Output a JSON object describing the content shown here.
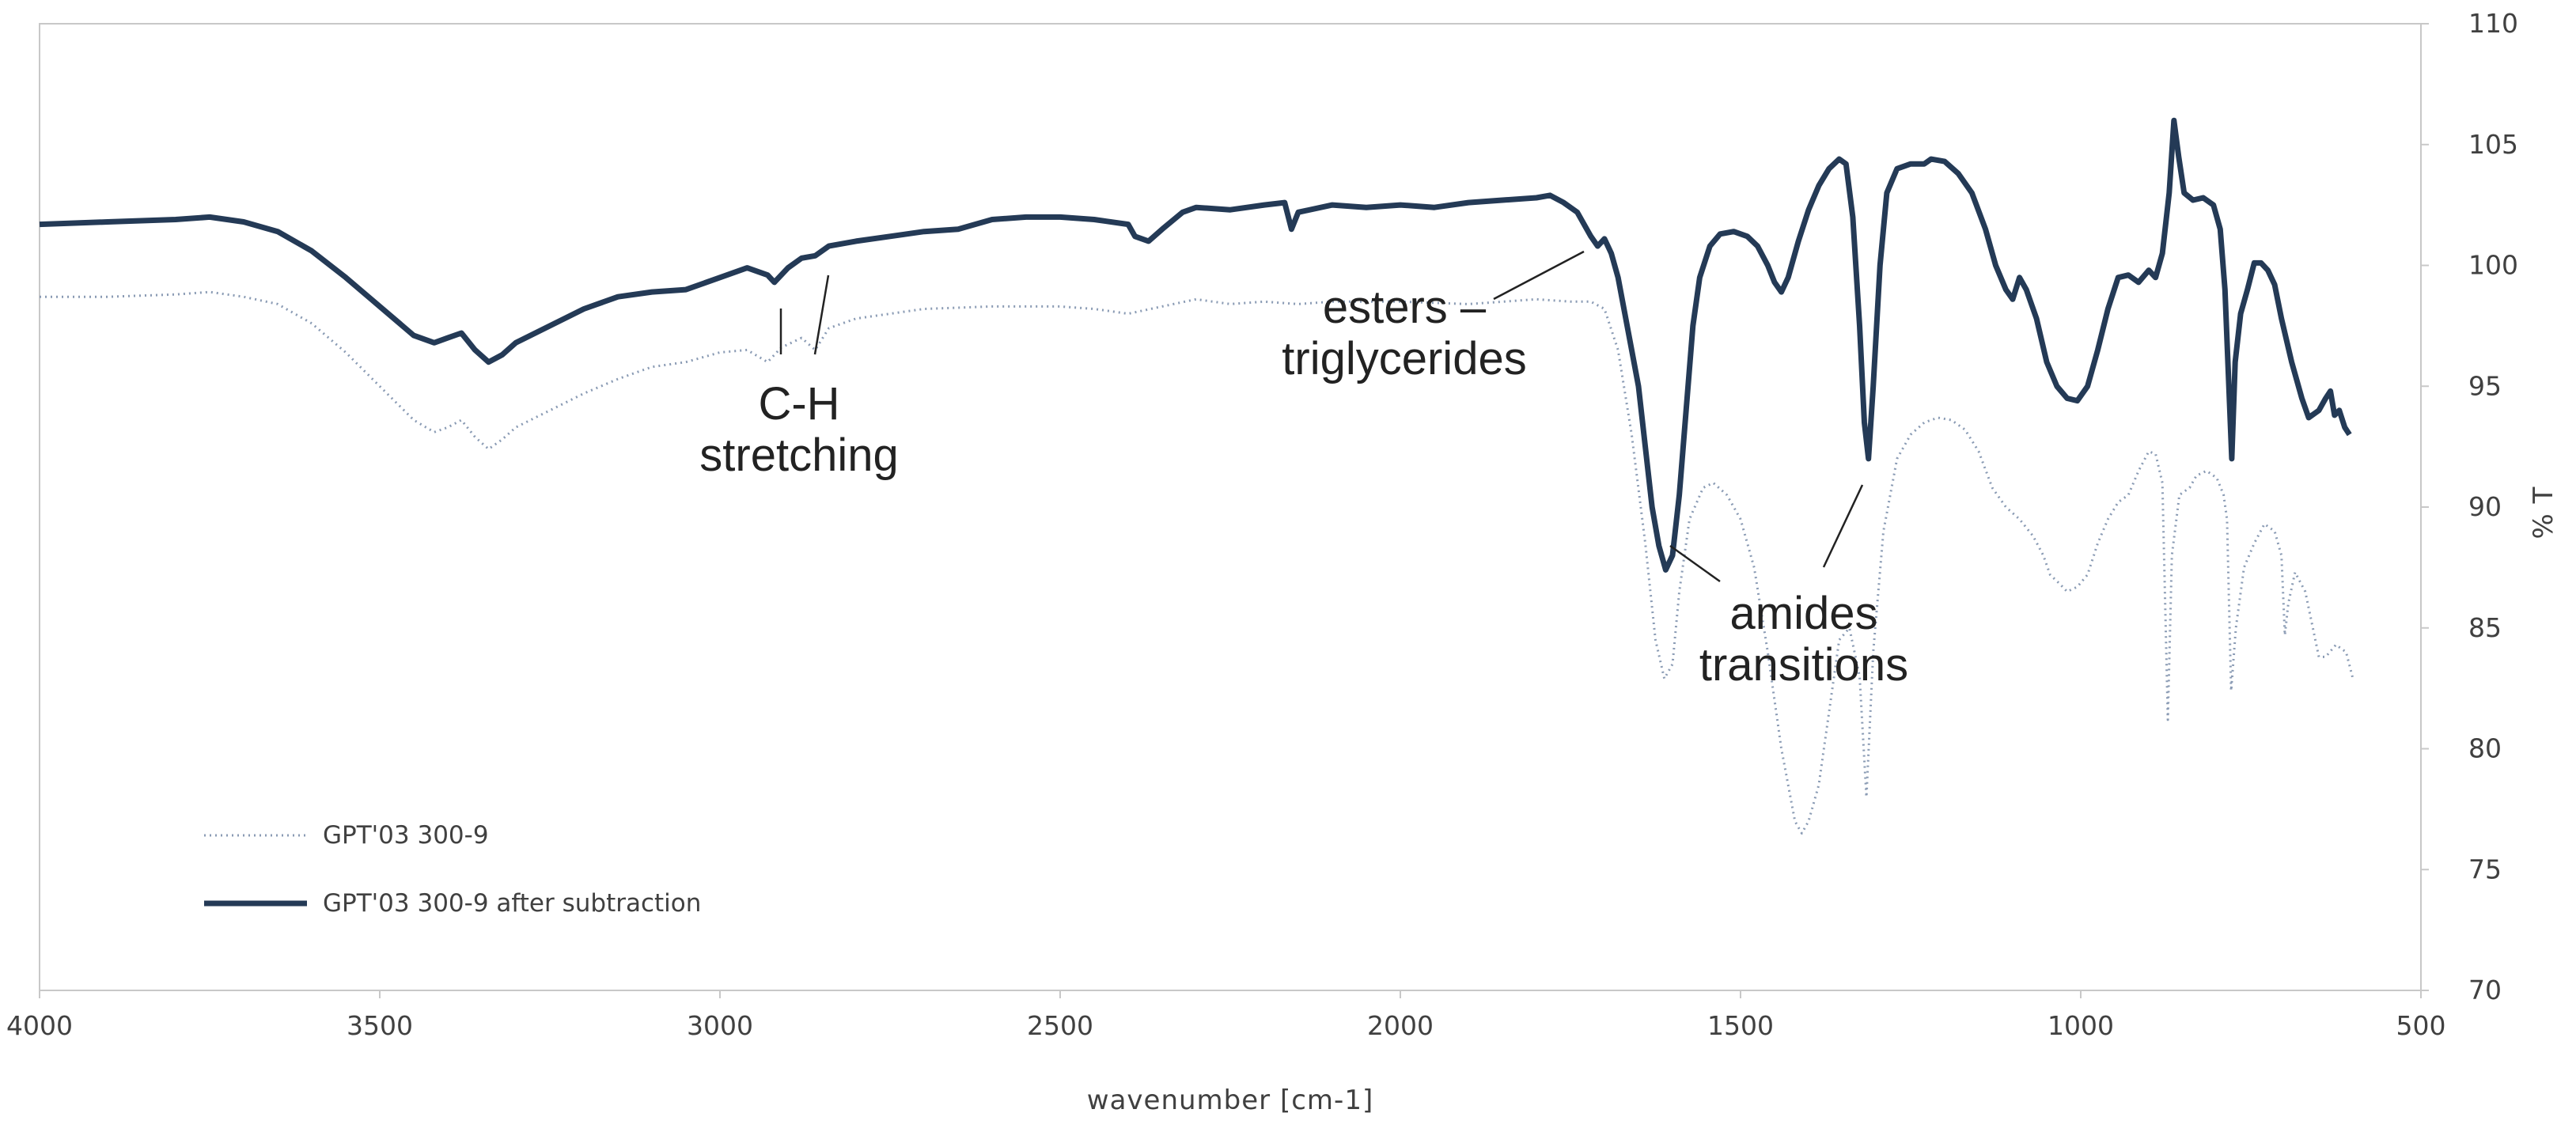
{
  "chart_data": {
    "type": "line",
    "xlabel": "wavenumber  [cm-1]",
    "ylabel": "% T",
    "xlim": [
      4000,
      500
    ],
    "ylim": [
      70,
      110
    ],
    "x_ticks": [
      4000,
      3500,
      3000,
      2500,
      2000,
      1500,
      1000,
      500
    ],
    "y_ticks": [
      70,
      75,
      80,
      85,
      90,
      95,
      100,
      105,
      110
    ],
    "y_axis_side": "right",
    "grid": false,
    "legend_position": "bottom-left",
    "series": [
      {
        "name": "GPT'03 300-9",
        "style": "dotted",
        "color": "#8A9BB4",
        "points": [
          [
            4000,
            98.7
          ],
          [
            3900,
            98.7
          ],
          [
            3800,
            98.8
          ],
          [
            3750,
            98.9
          ],
          [
            3700,
            98.7
          ],
          [
            3650,
            98.4
          ],
          [
            3600,
            97.6
          ],
          [
            3550,
            96.4
          ],
          [
            3500,
            95.0
          ],
          [
            3450,
            93.6
          ],
          [
            3420,
            93.1
          ],
          [
            3400,
            93.3
          ],
          [
            3380,
            93.6
          ],
          [
            3360,
            92.9
          ],
          [
            3340,
            92.4
          ],
          [
            3320,
            92.8
          ],
          [
            3300,
            93.3
          ],
          [
            3250,
            94.0
          ],
          [
            3200,
            94.7
          ],
          [
            3150,
            95.3
          ],
          [
            3100,
            95.8
          ],
          [
            3050,
            96.0
          ],
          [
            3000,
            96.4
          ],
          [
            2960,
            96.5
          ],
          [
            2930,
            96.0
          ],
          [
            2910,
            96.6
          ],
          [
            2880,
            97.0
          ],
          [
            2860,
            96.5
          ],
          [
            2840,
            97.4
          ],
          [
            2800,
            97.8
          ],
          [
            2750,
            98.0
          ],
          [
            2700,
            98.2
          ],
          [
            2600,
            98.3
          ],
          [
            2500,
            98.3
          ],
          [
            2450,
            98.2
          ],
          [
            2400,
            98.0
          ],
          [
            2350,
            98.3
          ],
          [
            2300,
            98.6
          ],
          [
            2250,
            98.4
          ],
          [
            2200,
            98.5
          ],
          [
            2150,
            98.4
          ],
          [
            2100,
            98.5
          ],
          [
            2000,
            98.5
          ],
          [
            1900,
            98.4
          ],
          [
            1800,
            98.6
          ],
          [
            1750,
            98.5
          ],
          [
            1720,
            98.5
          ],
          [
            1700,
            98.2
          ],
          [
            1680,
            96.5
          ],
          [
            1660,
            93.0
          ],
          [
            1640,
            88.5
          ],
          [
            1625,
            84.5
          ],
          [
            1612,
            82.9
          ],
          [
            1600,
            83.5
          ],
          [
            1590,
            86.5
          ],
          [
            1575,
            89.5
          ],
          [
            1555,
            90.8
          ],
          [
            1540,
            91.0
          ],
          [
            1520,
            90.5
          ],
          [
            1500,
            89.5
          ],
          [
            1480,
            87.5
          ],
          [
            1460,
            84.0
          ],
          [
            1440,
            80.0
          ],
          [
            1420,
            77.0
          ],
          [
            1410,
            76.5
          ],
          [
            1400,
            77.0
          ],
          [
            1385,
            78.5
          ],
          [
            1370,
            81.5
          ],
          [
            1355,
            84.5
          ],
          [
            1340,
            85.0
          ],
          [
            1325,
            83.0
          ],
          [
            1315,
            78.0
          ],
          [
            1305,
            84.0
          ],
          [
            1290,
            89.0
          ],
          [
            1270,
            92.0
          ],
          [
            1250,
            93.0
          ],
          [
            1230,
            93.5
          ],
          [
            1210,
            93.7
          ],
          [
            1190,
            93.6
          ],
          [
            1170,
            93.2
          ],
          [
            1150,
            92.3
          ],
          [
            1130,
            90.8
          ],
          [
            1110,
            90.0
          ],
          [
            1090,
            89.5
          ],
          [
            1070,
            88.8
          ],
          [
            1055,
            88.0
          ],
          [
            1045,
            87.2
          ],
          [
            1030,
            86.8
          ],
          [
            1020,
            86.5
          ],
          [
            1005,
            86.7
          ],
          [
            990,
            87.2
          ],
          [
            975,
            88.5
          ],
          [
            960,
            89.5
          ],
          [
            945,
            90.2
          ],
          [
            930,
            90.5
          ],
          [
            915,
            91.5
          ],
          [
            900,
            92.3
          ],
          [
            890,
            92.2
          ],
          [
            880,
            91.0
          ],
          [
            872,
            81.2
          ],
          [
            866,
            88.0
          ],
          [
            855,
            90.5
          ],
          [
            840,
            90.8
          ],
          [
            830,
            91.3
          ],
          [
            815,
            91.5
          ],
          [
            800,
            91.2
          ],
          [
            790,
            90.5
          ],
          [
            785,
            89.5
          ],
          [
            779,
            82.4
          ],
          [
            772,
            85.0
          ],
          [
            760,
            87.5
          ],
          [
            745,
            88.5
          ],
          [
            730,
            89.3
          ],
          [
            715,
            89.0
          ],
          [
            705,
            88.0
          ],
          [
            700,
            84.7
          ],
          [
            695,
            86.0
          ],
          [
            685,
            87.3
          ],
          [
            670,
            86.5
          ],
          [
            650,
            83.8
          ],
          [
            640,
            83.8
          ],
          [
            625,
            84.3
          ],
          [
            610,
            84.0
          ],
          [
            600,
            82.9
          ]
        ]
      },
      {
        "name": "GPT'03 300-9 after subtraction",
        "style": "solid",
        "color": "#243A56",
        "points": [
          [
            4000,
            101.7
          ],
          [
            3900,
            101.8
          ],
          [
            3800,
            101.9
          ],
          [
            3750,
            102.0
          ],
          [
            3700,
            101.8
          ],
          [
            3650,
            101.4
          ],
          [
            3600,
            100.6
          ],
          [
            3550,
            99.5
          ],
          [
            3500,
            98.3
          ],
          [
            3450,
            97.1
          ],
          [
            3420,
            96.8
          ],
          [
            3400,
            97.0
          ],
          [
            3380,
            97.2
          ],
          [
            3360,
            96.5
          ],
          [
            3340,
            96.0
          ],
          [
            3320,
            96.3
          ],
          [
            3300,
            96.8
          ],
          [
            3250,
            97.5
          ],
          [
            3200,
            98.2
          ],
          [
            3150,
            98.7
          ],
          [
            3100,
            98.9
          ],
          [
            3050,
            99.0
          ],
          [
            3000,
            99.5
          ],
          [
            2960,
            99.9
          ],
          [
            2930,
            99.6
          ],
          [
            2920,
            99.3
          ],
          [
            2900,
            99.9
          ],
          [
            2880,
            100.3
          ],
          [
            2860,
            100.4
          ],
          [
            2840,
            100.8
          ],
          [
            2800,
            101.0
          ],
          [
            2750,
            101.2
          ],
          [
            2700,
            101.4
          ],
          [
            2650,
            101.5
          ],
          [
            2600,
            101.9
          ],
          [
            2550,
            102.0
          ],
          [
            2500,
            102.0
          ],
          [
            2450,
            101.9
          ],
          [
            2400,
            101.7
          ],
          [
            2390,
            101.2
          ],
          [
            2370,
            101.0
          ],
          [
            2350,
            101.5
          ],
          [
            2320,
            102.2
          ],
          [
            2300,
            102.4
          ],
          [
            2250,
            102.3
          ],
          [
            2200,
            102.5
          ],
          [
            2170,
            102.6
          ],
          [
            2160,
            101.5
          ],
          [
            2150,
            102.2
          ],
          [
            2100,
            102.5
          ],
          [
            2050,
            102.4
          ],
          [
            2000,
            102.5
          ],
          [
            1950,
            102.4
          ],
          [
            1900,
            102.6
          ],
          [
            1850,
            102.7
          ],
          [
            1800,
            102.8
          ],
          [
            1780,
            102.9
          ],
          [
            1760,
            102.6
          ],
          [
            1740,
            102.2
          ],
          [
            1720,
            101.2
          ],
          [
            1710,
            100.8
          ],
          [
            1700,
            101.1
          ],
          [
            1690,
            100.5
          ],
          [
            1680,
            99.5
          ],
          [
            1670,
            98.0
          ],
          [
            1660,
            96.5
          ],
          [
            1650,
            95.0
          ],
          [
            1640,
            92.5
          ],
          [
            1630,
            90.0
          ],
          [
            1620,
            88.4
          ],
          [
            1610,
            87.4
          ],
          [
            1600,
            88.0
          ],
          [
            1590,
            90.5
          ],
          [
            1580,
            94.0
          ],
          [
            1570,
            97.5
          ],
          [
            1560,
            99.5
          ],
          [
            1545,
            100.8
          ],
          [
            1530,
            101.3
          ],
          [
            1510,
            101.4
          ],
          [
            1490,
            101.2
          ],
          [
            1475,
            100.8
          ],
          [
            1460,
            100.0
          ],
          [
            1450,
            99.3
          ],
          [
            1440,
            98.9
          ],
          [
            1430,
            99.5
          ],
          [
            1415,
            101.0
          ],
          [
            1400,
            102.3
          ],
          [
            1385,
            103.3
          ],
          [
            1370,
            104.0
          ],
          [
            1355,
            104.4
          ],
          [
            1345,
            104.2
          ],
          [
            1335,
            102.0
          ],
          [
            1325,
            97.5
          ],
          [
            1318,
            93.5
          ],
          [
            1312,
            92.0
          ],
          [
            1305,
            95.0
          ],
          [
            1295,
            100.0
          ],
          [
            1285,
            103.0
          ],
          [
            1270,
            104.0
          ],
          [
            1250,
            104.2
          ],
          [
            1230,
            104.2
          ],
          [
            1220,
            104.4
          ],
          [
            1200,
            104.3
          ],
          [
            1180,
            103.8
          ],
          [
            1160,
            103.0
          ],
          [
            1140,
            101.5
          ],
          [
            1125,
            100.0
          ],
          [
            1110,
            99.0
          ],
          [
            1100,
            98.6
          ],
          [
            1090,
            99.5
          ],
          [
            1080,
            99.0
          ],
          [
            1065,
            97.8
          ],
          [
            1050,
            96.0
          ],
          [
            1035,
            95.0
          ],
          [
            1020,
            94.5
          ],
          [
            1005,
            94.4
          ],
          [
            990,
            95.0
          ],
          [
            975,
            96.5
          ],
          [
            960,
            98.2
          ],
          [
            945,
            99.5
          ],
          [
            930,
            99.6
          ],
          [
            915,
            99.3
          ],
          [
            900,
            99.8
          ],
          [
            890,
            99.5
          ],
          [
            880,
            100.5
          ],
          [
            870,
            103.0
          ],
          [
            863,
            106.0
          ],
          [
            856,
            104.5
          ],
          [
            848,
            103.0
          ],
          [
            835,
            102.7
          ],
          [
            820,
            102.8
          ],
          [
            805,
            102.5
          ],
          [
            795,
            101.5
          ],
          [
            788,
            99.0
          ],
          [
            783,
            95.5
          ],
          [
            778,
            92.0
          ],
          [
            773,
            96.0
          ],
          [
            765,
            98.0
          ],
          [
            755,
            99.0
          ],
          [
            745,
            100.1
          ],
          [
            735,
            100.1
          ],
          [
            725,
            99.8
          ],
          [
            715,
            99.2
          ],
          [
            705,
            97.8
          ],
          [
            690,
            96.0
          ],
          [
            675,
            94.5
          ],
          [
            665,
            93.7
          ],
          [
            650,
            94.0
          ],
          [
            640,
            94.5
          ],
          [
            633,
            94.8
          ],
          [
            627,
            93.8
          ],
          [
            620,
            94.0
          ],
          [
            612,
            93.3
          ],
          [
            605,
            93.0
          ]
        ]
      }
    ],
    "annotations": [
      {
        "lines": [
          "C-H",
          "stretching"
        ]
      },
      {
        "lines": [
          "esters –",
          "triglycerides"
        ]
      },
      {
        "lines": [
          "amides",
          "transitions"
        ]
      }
    ]
  }
}
